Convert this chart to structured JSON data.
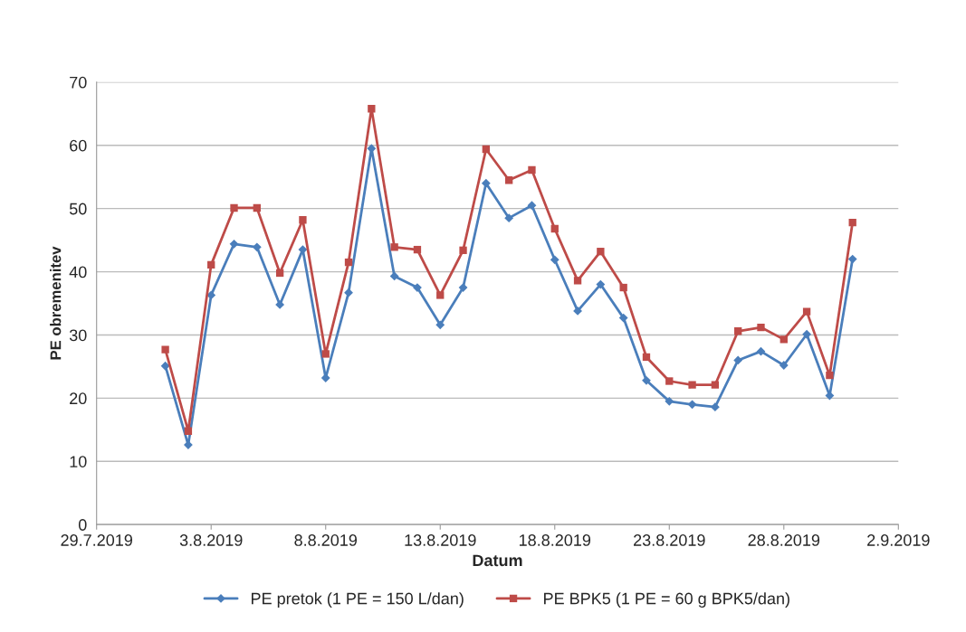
{
  "chart_data": {
    "type": "line",
    "xlabel": "Datum",
    "ylabel": "PE obremenitev",
    "x": [
      "2019-08-01",
      "2019-08-02",
      "2019-08-03",
      "2019-08-04",
      "2019-08-05",
      "2019-08-06",
      "2019-08-07",
      "2019-08-08",
      "2019-08-09",
      "2019-08-10",
      "2019-08-11",
      "2019-08-12",
      "2019-08-13",
      "2019-08-14",
      "2019-08-15",
      "2019-08-16",
      "2019-08-17",
      "2019-08-18",
      "2019-08-19",
      "2019-08-20",
      "2019-08-21",
      "2019-08-22",
      "2019-08-23",
      "2019-08-24",
      "2019-08-25",
      "2019-08-26",
      "2019-08-27",
      "2019-08-28",
      "2019-08-29",
      "2019-08-30",
      "2019-08-31"
    ],
    "series": [
      {
        "name": "PE pretok (1 PE = 150 L/dan)",
        "color": "#4a7ebb",
        "marker": "diamond",
        "values": [
          25.1,
          12.6,
          36.3,
          44.4,
          43.9,
          34.8,
          43.5,
          23.2,
          36.7,
          59.5,
          39.3,
          37.5,
          31.6,
          37.5,
          54.0,
          48.5,
          50.5,
          41.9,
          33.8,
          38.0,
          32.7,
          22.8,
          19.5,
          19.0,
          18.6,
          26.0,
          27.4,
          25.2,
          30.1,
          20.4,
          42.0
        ]
      },
      {
        "name": "PE BPK5 (1 PE = 60 g BPK5/dan)",
        "color": "#be4b48",
        "marker": "square",
        "values": [
          27.7,
          14.8,
          41.1,
          50.1,
          50.1,
          39.8,
          48.2,
          27.0,
          41.5,
          65.8,
          43.9,
          43.5,
          36.3,
          43.4,
          59.4,
          54.5,
          56.1,
          46.8,
          38.6,
          43.2,
          37.5,
          26.5,
          22.7,
          22.1,
          22.1,
          30.6,
          31.2,
          29.3,
          33.7,
          23.6,
          47.8
        ]
      }
    ],
    "xlim": [
      "2019-07-29",
      "2019-09-02"
    ],
    "xticks": [
      {
        "value": "2019-07-29",
        "label": "29.7.2019"
      },
      {
        "value": "2019-08-03",
        "label": "3.8.2019"
      },
      {
        "value": "2019-08-08",
        "label": "8.8.2019"
      },
      {
        "value": "2019-08-13",
        "label": "13.8.2019"
      },
      {
        "value": "2019-08-18",
        "label": "18.8.2019"
      },
      {
        "value": "2019-08-23",
        "label": "23.8.2019"
      },
      {
        "value": "2019-08-28",
        "label": "28.8.2019"
      },
      {
        "value": "2019-09-02",
        "label": "2.9.2019"
      }
    ],
    "ylim": [
      0,
      70
    ],
    "yticks": [
      0,
      10,
      20,
      30,
      40,
      50,
      60,
      70
    ],
    "grid": "y",
    "legend": "bottom",
    "line_style": "solid"
  }
}
